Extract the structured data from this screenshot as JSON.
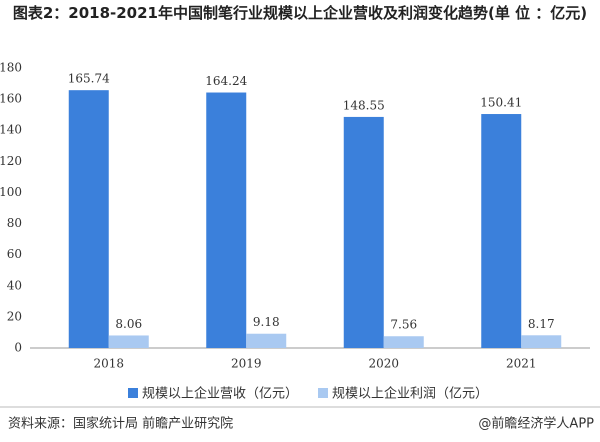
{
  "chart_data": {
    "type": "bar",
    "title": "图表2：2018-2021年中国制笔行业规模以上企业营收及利润变化趋势(单 位 ：亿元)",
    "categories": [
      "2018",
      "2019",
      "2020",
      "2021"
    ],
    "series": [
      {
        "name": "规模以上企业营收（亿元）",
        "color": "#3b80db",
        "values": [
          165.74,
          164.24,
          148.55,
          150.41
        ]
      },
      {
        "name": "规模以上企业利润（亿元）",
        "color": "#a9c9f1",
        "values": [
          8.06,
          9.18,
          7.56,
          8.17
        ]
      }
    ],
    "ylim": [
      0,
      180
    ],
    "yticks": [
      0,
      20,
      40,
      60,
      80,
      100,
      120,
      140,
      160,
      180
    ],
    "grid": false,
    "source": "资料来源：国家统计局 前瞻产业研究院",
    "credit": "@前瞻经济学人APP"
  }
}
